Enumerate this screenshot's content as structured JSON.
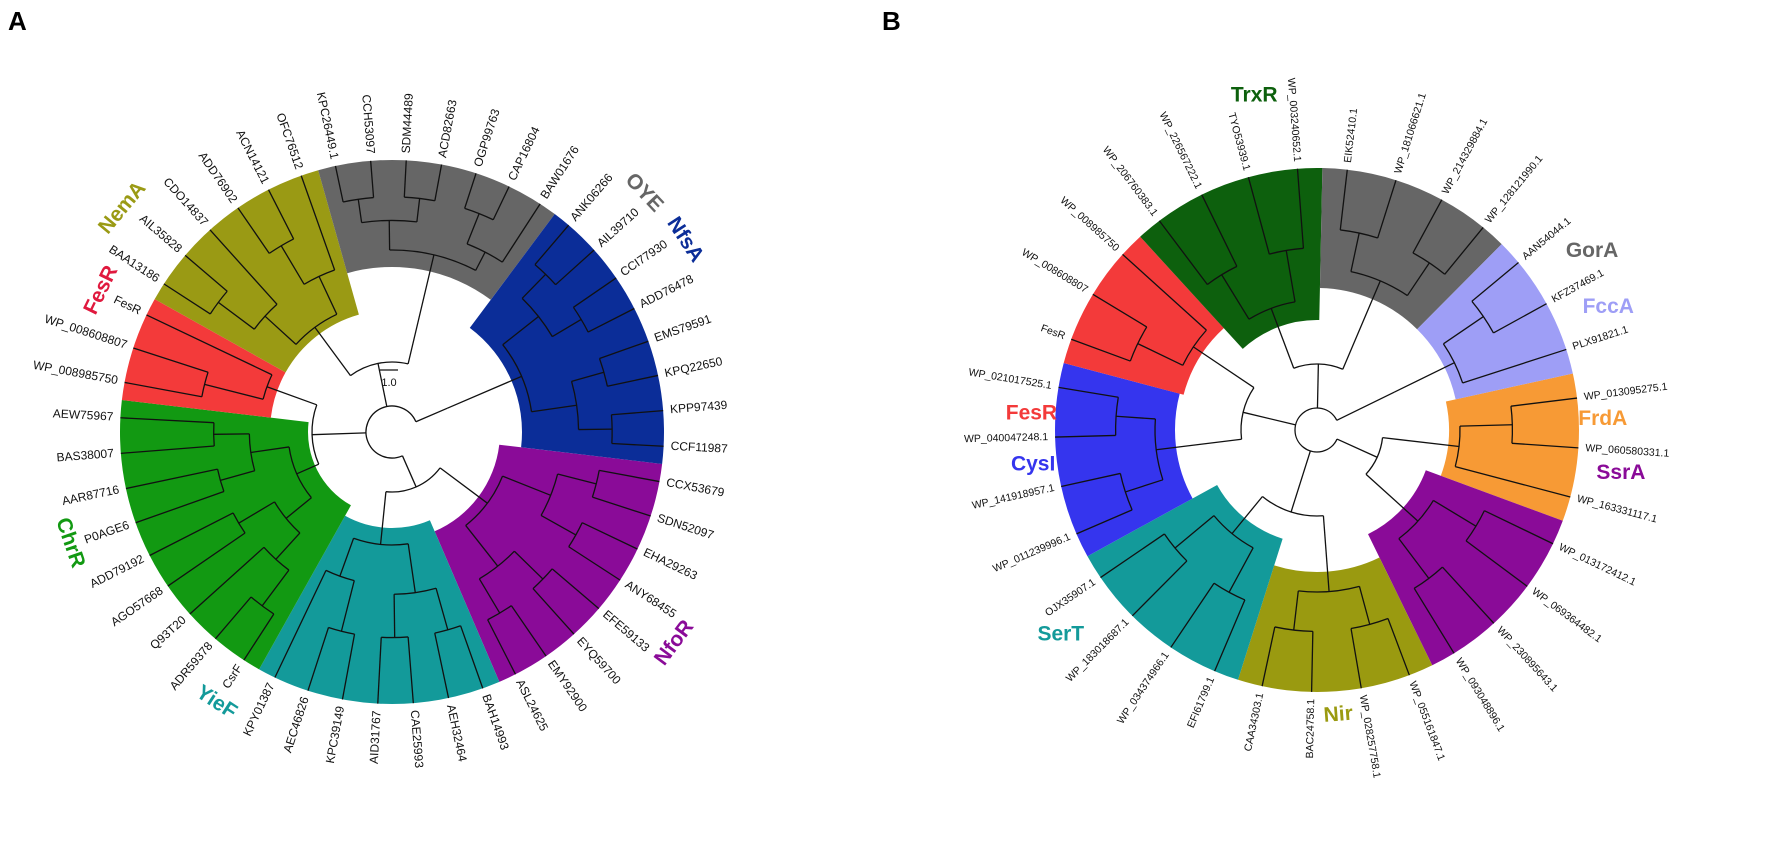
{
  "panels": [
    {
      "letter": "A",
      "scale_label": "1.0",
      "clades": [
        {
          "name": "NfoR",
          "color": "#8a0b98",
          "label_color": "#8a0b98",
          "leaves": [
            "CCX53679",
            "SDN52097",
            "EHA29263",
            "ANY68455",
            "EFE59133",
            "EYQ59700",
            "EMY92900",
            "ASL24625"
          ]
        },
        {
          "name": "YieF",
          "color": "#139a9a",
          "label_color": "#139a9a",
          "leaves": [
            "BAH14993",
            "AEH32464",
            "CAE25993",
            "AID31767",
            "KPC39149",
            "AEC46826",
            "KPY01387"
          ]
        },
        {
          "name": "ChrR",
          "color": "#129912",
          "label_color": "#129912",
          "leaves": [
            "CsrF",
            "ADR59378",
            "Q93T20",
            "AGO57668",
            "ADD79192",
            "P0AGE6",
            "AAR87716",
            "BAS38007",
            "AEW75967"
          ]
        },
        {
          "name": "FesR",
          "color": "#f33a3a",
          "label_color": "#e0193e",
          "leaves": [
            "WP_008985750",
            "WP_008608807",
            "FesR"
          ]
        },
        {
          "name": "NemA",
          "color": "#9a9a14",
          "label_color": "#9a9a14",
          "leaves": [
            "BAA13186",
            "AIL35828",
            "CDO14837",
            "ADD76902",
            "ACN14121",
            "OFC76512"
          ]
        },
        {
          "name": "OYE",
          "color": "#666666",
          "label_color": "#666666",
          "leaves": [
            "KPC26449.1",
            "CCH53097",
            "SDM44489",
            "ACD82663",
            "OGP99763",
            "CAP16804",
            "BAW01676"
          ]
        },
        {
          "name": "NfsA",
          "color": "#0b2d98",
          "label_color": "#0b2d98",
          "leaves": [
            "ANK06266",
            "AIL39710",
            "CCI77930",
            "ADD76478",
            "EMS79591",
            "KPQ22650",
            "KPP97439",
            "CCF11987"
          ]
        }
      ]
    },
    {
      "letter": "B",
      "clades": [
        {
          "name": "FrdA",
          "color": "#f79a35",
          "label_color": "#f79a35",
          "leaves": [
            "WP_013095275.1",
            "WP_060580331.1",
            "WP_163331117.1"
          ]
        },
        {
          "name": "SsrA",
          "color": "#8a0b98",
          "label_color": "#8a0b98",
          "leaves": [
            "WP_013172412.1",
            "WP_069364482.1",
            "WP_230895643.1",
            "WP_093048896.1"
          ]
        },
        {
          "name": "Nir",
          "color": "#9a9a10",
          "label_color": "#9a9a10",
          "leaves": [
            "WP_055161847.1",
            "WP_028257758.1",
            "BAC24758.1",
            "CAA34303.1"
          ]
        },
        {
          "name": "SerT",
          "color": "#139a9a",
          "label_color": "#139a9a",
          "leaves": [
            "EFI61799.1",
            "WP_034374966.1",
            "WP_183018687.1",
            "OJX35907.1"
          ]
        },
        {
          "name": "CysI",
          "color": "#3535ee",
          "label_color": "#3535ee",
          "leaves": [
            "WP_011239996.1",
            "WP_141918957.1",
            "WP_040047248.1",
            "WP_021017525.1"
          ]
        },
        {
          "name": "FesR",
          "color": "#f33a3a",
          "label_color": "#f33a3a",
          "leaves": [
            "FesR",
            "WP_008608807",
            "WP_008985750"
          ]
        },
        {
          "name": "TrxR",
          "color": "#0d600d",
          "label_color": "#0d600d",
          "leaves": [
            "WP_206760383.1",
            "WP_226567222.1",
            "TYO53939.1",
            "WP_003240652.1"
          ]
        },
        {
          "name": "GorA",
          "color": "#666666",
          "label_color": "#666666",
          "leaves": [
            "EIK52410.1",
            "WP_181066621.1",
            "WP_214329884.1",
            "WP_128121990.1"
          ]
        },
        {
          "name": "FccA",
          "color": "#9e9ef6",
          "label_color": "#9e9ef6",
          "leaves": [
            "AAN54044.1",
            "KFZ37469.1",
            "PLX91821.1"
          ]
        }
      ]
    }
  ]
}
